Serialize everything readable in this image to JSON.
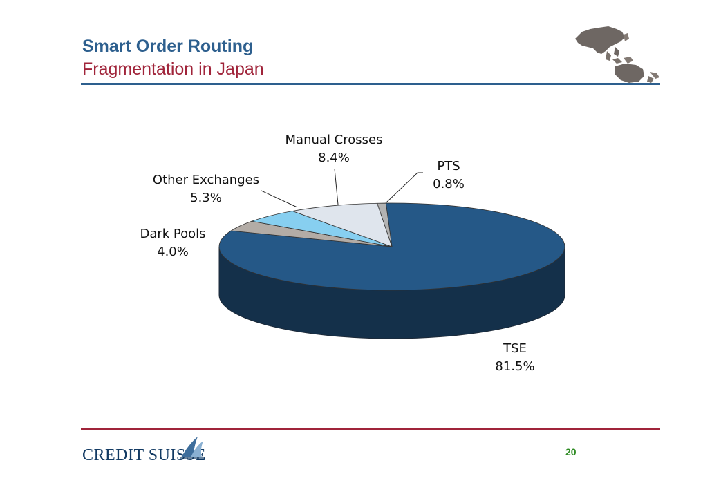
{
  "header": {
    "title": "Smart Order Routing",
    "subtitle": "Fragmentation in Japan"
  },
  "footer": {
    "logo_text": "CREDIT SUISSE",
    "page_number": "20"
  },
  "colors": {
    "title": "#2d5f8e",
    "subtitle": "#a0243a",
    "page_number": "#2e8b23"
  },
  "chart_data": {
    "type": "pie",
    "title": "",
    "slices": [
      {
        "name": "TSE",
        "value": 81.5,
        "label": "81.5%",
        "color": "#255887"
      },
      {
        "name": "Dark Pools",
        "value": 4.0,
        "label": "4.0%",
        "color": "#b3aca6"
      },
      {
        "name": "Other Exchanges",
        "value": 5.3,
        "label": "5.3%",
        "color": "#87cff0"
      },
      {
        "name": "Manual Crosses",
        "value": 8.4,
        "label": "8.4%",
        "color": "#dfe5ed"
      },
      {
        "name": "PTS",
        "value": 0.8,
        "label": "0.8%",
        "color": "#b3b3b3"
      }
    ],
    "three_d": true,
    "legend": "none"
  }
}
